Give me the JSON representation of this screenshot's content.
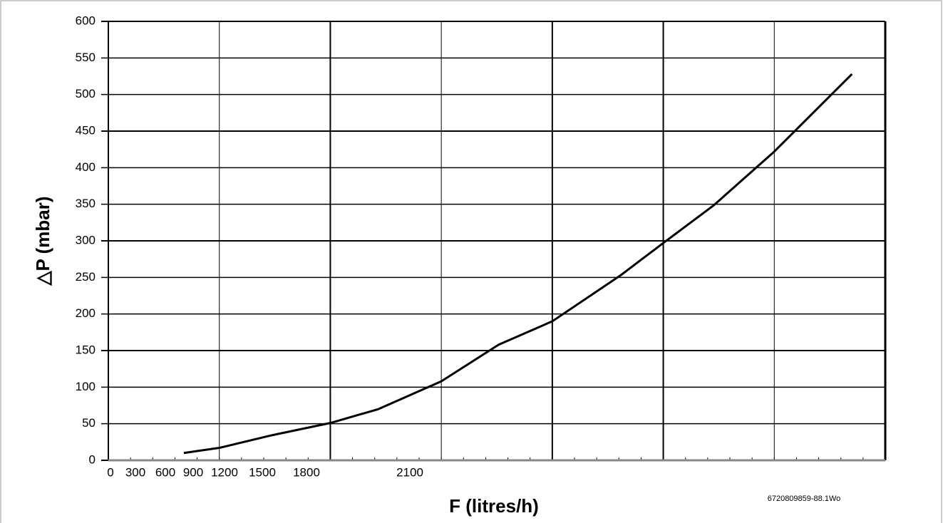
{
  "chart_data": {
    "type": "line",
    "y_label": "△P (mbar)",
    "x_label": "F (litres/h)",
    "note": "6720809859-88.1Wo",
    "xlim": [
      0,
      2100
    ],
    "xticks": [
      0,
      300,
      600,
      900,
      1200,
      1500,
      1800,
      2100
    ],
    "ylim": [
      0,
      600
    ],
    "yticks": [
      0,
      50,
      100,
      150,
      200,
      250,
      300,
      350,
      400,
      450,
      500,
      550,
      600
    ],
    "grid": true,
    "x": [
      204,
      300,
      440,
      600,
      730,
      900,
      1055,
      1200,
      1385,
      1500,
      1635,
      1800,
      2010
    ],
    "series": [
      {
        "color": "#000000",
        "values": [
          10,
          17,
          34,
          51,
          70,
          108,
          158,
          190,
          253,
          297,
          348,
          422,
          528
        ]
      }
    ]
  }
}
